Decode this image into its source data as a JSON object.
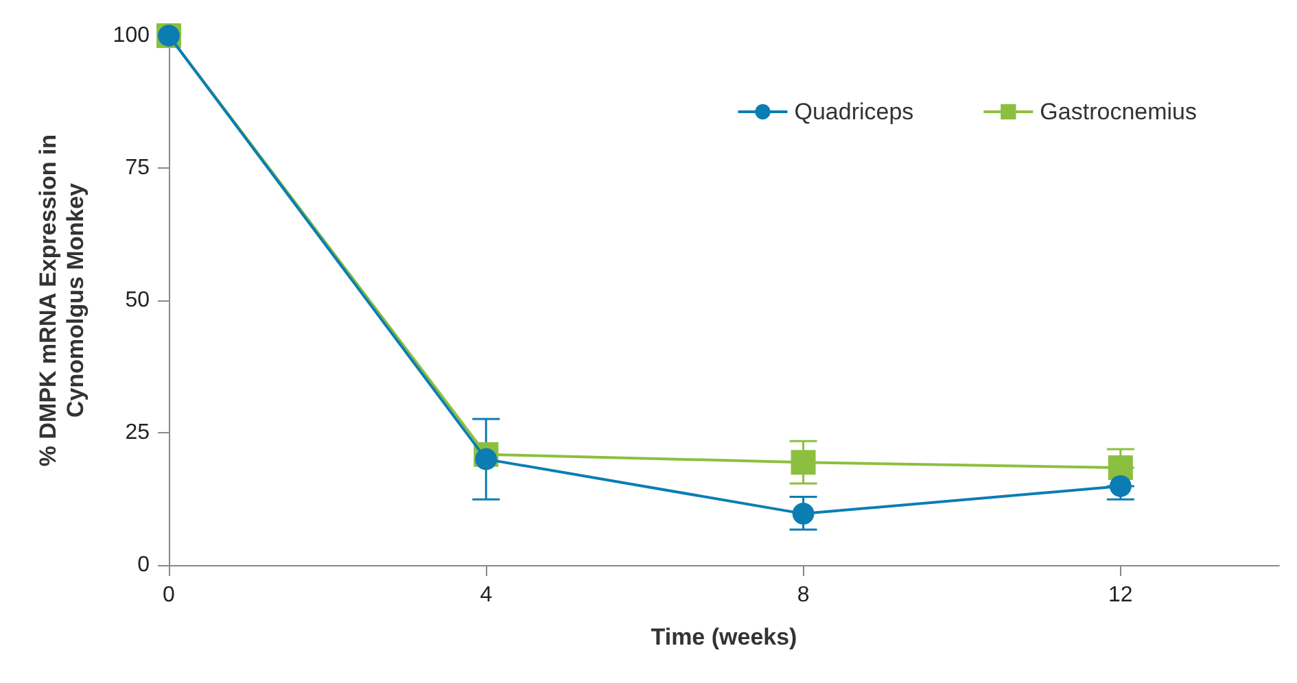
{
  "chart_data": {
    "type": "line",
    "xlabel": "Time (weeks)",
    "ylabel": "% DMPK mRNA Expression in\nCynomolgus Monkey",
    "x": [
      0,
      4,
      8,
      12
    ],
    "xlim": [
      0,
      14
    ],
    "xticks": [
      0,
      4,
      8,
      12
    ],
    "ylim": [
      0,
      100
    ],
    "yticks": [
      0,
      25,
      50,
      75,
      100
    ],
    "grid": false,
    "legend": "top right",
    "series": [
      {
        "name": "Quadriceps",
        "color": "#0b7db3",
        "marker": "circle",
        "values": [
          100,
          20,
          9.7,
          14.9
        ],
        "errors": [
          null,
          [
            12.4,
            27.6
          ],
          [
            6.7,
            12.9
          ],
          [
            12.4,
            14.9
          ]
        ]
      },
      {
        "name": "Gastrocnemius",
        "color": "#8cbf3f",
        "marker": "square",
        "values": [
          100,
          20.9,
          19.4,
          18.4
        ],
        "errors": [
          null,
          null,
          [
            15.4,
            23.4
          ],
          [
            18.4,
            21.9
          ]
        ]
      }
    ]
  }
}
